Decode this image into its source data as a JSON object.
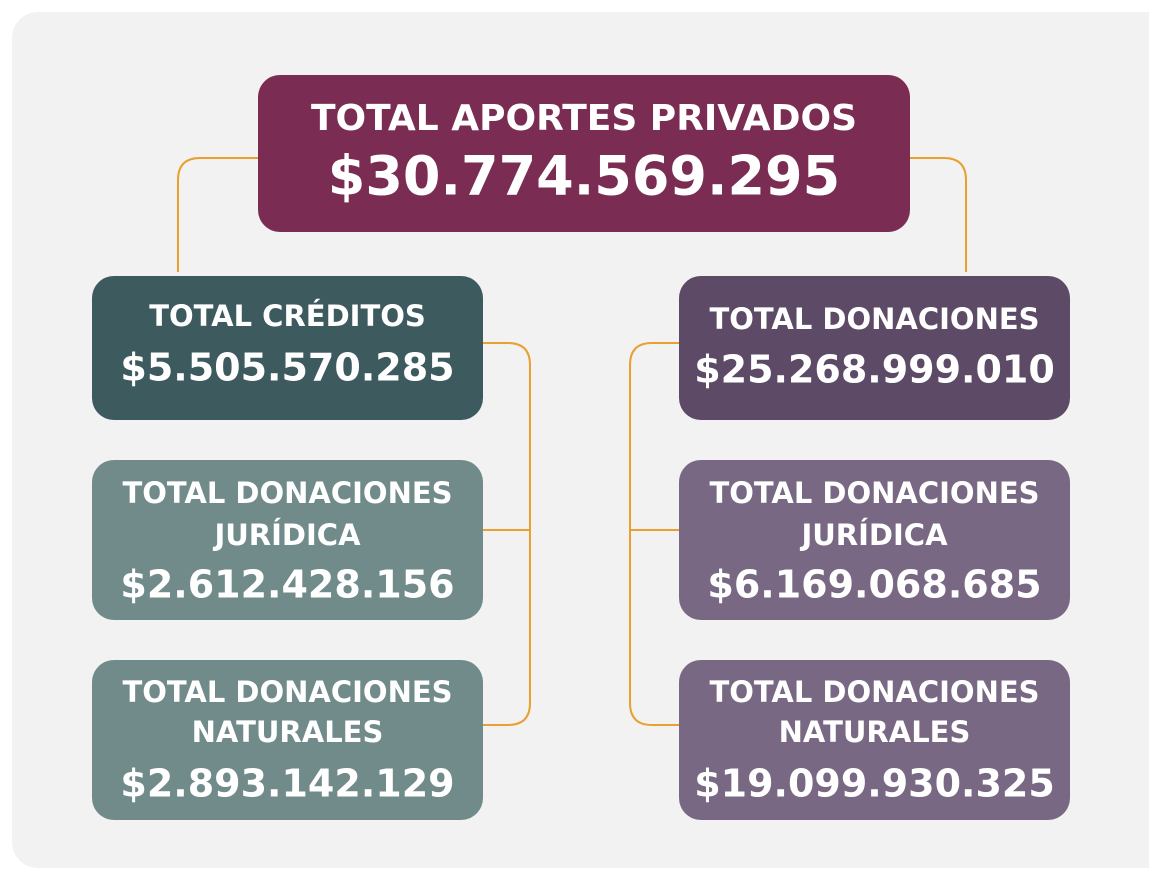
{
  "nodes": [
    {
      "label": [
        "TOTAL APORTES PRIVADOS"
      ],
      "value": "$30.774.569.295"
    },
    {
      "label": [
        "TOTAL CRÉDITOS"
      ],
      "value": "$5.505.570.285"
    },
    {
      "label": [
        "TOTAL DONACIONES",
        "JURÍDICA"
      ],
      "value": "$2.612.428.156"
    },
    {
      "label": [
        "TOTAL DONACIONES",
        "NATURALES"
      ],
      "value": "$2.893.142.129"
    },
    {
      "label": [
        "TOTAL DONACIONES"
      ],
      "value": "$25.268.999.010"
    },
    {
      "label": [
        "TOTAL DONACIONES",
        "JURÍDICA"
      ],
      "value": "$6.169.068.685"
    },
    {
      "label": [
        "TOTAL DONACIONES",
        "NATURALES"
      ],
      "value": "$19.099.930.325"
    }
  ]
}
